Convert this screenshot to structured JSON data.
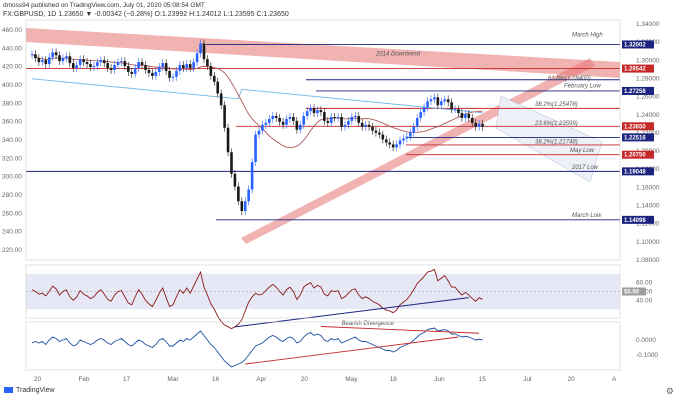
{
  "header": {
    "line1": "dmoss94 published on TradingView.com, July 01, 2020 05:08:54 GMT",
    "line2": "FX:GBPUSD, 1D  1.23650  ▼ -0.00342 (−0.28%)  O:1.23992  H:1.24012  L:1.23595  C:1.23650"
  },
  "footer": {
    "brand": "TradingView",
    "settings_icon": "gear-icon"
  },
  "colors": {
    "bull": "#2962ff",
    "bear": "#1a1a1a",
    "ma": "#b05a5a",
    "ma_long": "#6fb6e6",
    "level_red": "#c62828",
    "level_blue": "#1a237e",
    "channel": "#e57373",
    "rsi": "#8b1a1a",
    "osc": "#1e4fa3"
  },
  "chart_data": [
    {
      "type": "candlestick",
      "title": "",
      "y_ticks": [
        "460.00",
        "440.00",
        "420.00",
        "400.00",
        "380.00",
        "360.00",
        "340.00",
        "320.00",
        "300.00",
        "280.00",
        "260.00",
        "240.00",
        "220.00"
      ],
      "right_ticks": [
        "1.34000",
        "1.32000",
        "1.30000",
        "1.28000",
        "1.26000",
        "1.24000",
        "1.22000",
        "1.20000",
        "1.18000",
        "1.16000",
        "1.14000",
        "1.12000",
        "1.10000",
        "1.08000"
      ],
      "x_ticks": [
        "20",
        "Feb",
        "17",
        "Mar",
        "16",
        "Apr",
        "20",
        "May",
        "18",
        "Jun",
        "15",
        "Jul",
        "20",
        "A"
      ],
      "price_badges": [
        {
          "label": "1.32002",
          "color": "level_blue"
        },
        {
          "label": "1.29542",
          "color": "level_red"
        },
        {
          "label": "1.27258",
          "color": "level_blue"
        },
        {
          "label": "1.23650",
          "color": "level_red"
        },
        {
          "label": "1.22516",
          "color": "level_blue"
        },
        {
          "label": "1.20750",
          "color": "level_red"
        },
        {
          "label": "1.19048",
          "color": "level_blue"
        },
        {
          "label": "1.14098",
          "color": "level_blue"
        }
      ],
      "annotations": [
        "March High",
        "2014 Downtrend",
        "61.8%(1.28400)",
        "February Low",
        "38.2%(1.25478)",
        "23.6%(1.23599)",
        "38.2%(1.21748)",
        "May Low",
        "2017 Low",
        "March Low"
      ],
      "closes": [
        1.31,
        1.306,
        1.302,
        1.304,
        1.3,
        1.307,
        1.312,
        1.309,
        1.303,
        1.306,
        1.308,
        1.301,
        1.296,
        1.299,
        1.305,
        1.302,
        1.3,
        1.297,
        1.298,
        1.302,
        1.304,
        1.301,
        1.296,
        1.294,
        1.299,
        1.302,
        1.303,
        1.298,
        1.292,
        1.29,
        1.296,
        1.302,
        1.299,
        1.294,
        1.291,
        1.288,
        1.292,
        1.297,
        1.301,
        1.293,
        1.286,
        1.287,
        1.293,
        1.299,
        1.296,
        1.3,
        1.296,
        1.302,
        1.311,
        1.321,
        1.305,
        1.298,
        1.288,
        1.282,
        1.27,
        1.258,
        1.235,
        1.21,
        1.188,
        1.175,
        1.16,
        1.15,
        1.16,
        1.172,
        1.2,
        1.228,
        1.232,
        1.238,
        1.24,
        1.244,
        1.247,
        1.245,
        1.241,
        1.238,
        1.244,
        1.246,
        1.242,
        1.233,
        1.238,
        1.247,
        1.252,
        1.255,
        1.25,
        1.253,
        1.251,
        1.242,
        1.24,
        1.246,
        1.245,
        1.246,
        1.236,
        1.238,
        1.242,
        1.246,
        1.247,
        1.24,
        1.236,
        1.238,
        1.236,
        1.232,
        1.23,
        1.228,
        1.223,
        1.22,
        1.218,
        1.215,
        1.218,
        1.222,
        1.224,
        1.226,
        1.23,
        1.236,
        1.245,
        1.251,
        1.256,
        1.262,
        1.264,
        1.266,
        1.258,
        1.262,
        1.264,
        1.261,
        1.254,
        1.254,
        1.25,
        1.245,
        1.249,
        1.245,
        1.24,
        1.236,
        1.239,
        1.236
      ],
      "series": [
        {
          "name": "",
          "values": []
        }
      ]
    },
    {
      "type": "line",
      "title": "",
      "y_ticks": [
        "60.00",
        "50.00",
        "40.00"
      ],
      "badge": "50.00",
      "values": [
        52,
        50,
        47,
        48,
        45,
        50,
        56,
        53,
        46,
        50,
        52,
        44,
        40,
        44,
        51,
        47,
        45,
        42,
        44,
        49,
        52,
        47,
        41,
        39,
        46,
        50,
        51,
        44,
        37,
        35,
        44,
        52,
        47,
        40,
        36,
        33,
        40,
        48,
        54,
        43,
        33,
        35,
        44,
        52,
        48,
        54,
        48,
        56,
        64,
        72,
        55,
        46,
        36,
        30,
        22,
        16,
        12,
        10,
        8,
        10,
        13,
        18,
        28,
        38,
        44,
        48,
        46,
        47,
        51,
        55,
        58,
        55,
        50,
        46,
        52,
        55,
        50,
        41,
        46,
        55,
        58,
        60,
        54,
        57,
        55,
        47,
        45,
        51,
        50,
        51,
        42,
        44,
        48,
        52,
        53,
        46,
        42,
        44,
        42,
        39,
        37,
        35,
        31,
        29,
        28,
        26,
        29,
        35,
        38,
        41,
        46,
        52,
        59,
        63,
        67,
        72,
        73,
        75,
        62,
        65,
        68,
        62,
        55,
        55,
        50,
        46,
        49,
        46,
        42,
        39,
        43,
        41
      ]
    },
    {
      "type": "line",
      "title": "",
      "y_ticks": [
        "0.0000",
        "-0.1000"
      ],
      "annotation": "Bearish Divergence",
      "values": [
        -0.02,
        -0.01,
        -0.02,
        -0.01,
        -0.03,
        0.0,
        0.02,
        0.01,
        -0.01,
        0.0,
        0.01,
        -0.02,
        -0.04,
        -0.03,
        0.0,
        -0.01,
        -0.02,
        -0.03,
        -0.02,
        0.0,
        0.01,
        0.0,
        -0.02,
        -0.03,
        -0.01,
        0.0,
        0.01,
        -0.01,
        -0.03,
        -0.04,
        -0.02,
        0.0,
        -0.01,
        -0.03,
        -0.04,
        -0.05,
        -0.03,
        0.0,
        0.01,
        -0.01,
        -0.04,
        -0.04,
        -0.02,
        0.0,
        -0.01,
        0.01,
        0.0,
        0.02,
        0.04,
        0.06,
        0.03,
        0.0,
        -0.03,
        -0.05,
        -0.08,
        -0.11,
        -0.14,
        -0.16,
        -0.18,
        -0.17,
        -0.16,
        -0.15,
        -0.13,
        -0.1,
        -0.07,
        -0.04,
        -0.03,
        -0.02,
        0.0,
        0.02,
        0.03,
        0.02,
        0.0,
        -0.01,
        0.01,
        0.02,
        0.01,
        -0.02,
        -0.01,
        0.02,
        0.04,
        0.05,
        0.03,
        0.04,
        0.03,
        0.0,
        -0.01,
        0.01,
        0.0,
        0.01,
        -0.02,
        -0.01,
        0.0,
        0.01,
        0.02,
        0.0,
        -0.01,
        -0.01,
        -0.02,
        -0.03,
        -0.04,
        -0.05,
        -0.06,
        -0.07,
        -0.07,
        -0.08,
        -0.07,
        -0.05,
        -0.04,
        -0.03,
        -0.02,
        0.0,
        0.02,
        0.04,
        0.05,
        0.07,
        0.075,
        0.08,
        0.06,
        0.065,
        0.07,
        0.06,
        0.04,
        0.04,
        0.03,
        0.02,
        0.025,
        0.02,
        0.01,
        0.0,
        0.005,
        0.0
      ]
    }
  ]
}
